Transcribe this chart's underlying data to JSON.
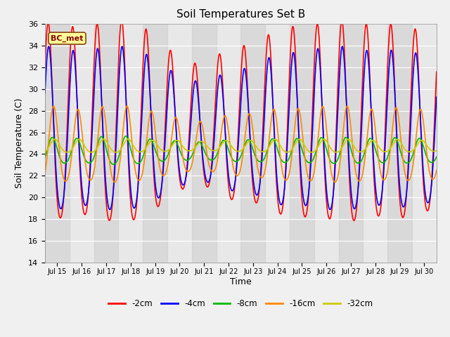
{
  "title": "Soil Temperatures Set B",
  "xlabel": "Time",
  "ylabel": "Soil Temperature (C)",
  "ylim": [
    14,
    36
  ],
  "xlim_days": [
    14.5,
    30.5
  ],
  "annotation": "BC_met",
  "legend_labels": [
    "-2cm",
    "-4cm",
    "-8cm",
    "-16cm",
    "-32cm"
  ],
  "legend_colors": [
    "#ff0000",
    "#0000ff",
    "#00bb00",
    "#ff8800",
    "#cccc00"
  ],
  "xtick_labels": [
    "Jul 15",
    "Jul 16",
    "Jul 17",
    "Jul 18",
    "Jul 19",
    "Jul 20",
    "Jul 21",
    "Jul 22",
    "Jul 23",
    "Jul 24",
    "Jul 25",
    "Jul 26",
    "Jul 27",
    "Jul 28",
    "Jul 29",
    "Jul 30"
  ],
  "xtick_positions": [
    15,
    16,
    17,
    18,
    19,
    20,
    21,
    22,
    23,
    24,
    25,
    26,
    27,
    28,
    29,
    30
  ],
  "background_color": "#f0f0f0",
  "plot_bg_color": "#e8e8e8",
  "grid_color": "#ffffff",
  "ytick_positions": [
    14,
    16,
    18,
    20,
    22,
    24,
    26,
    28,
    30,
    32,
    34,
    36
  ]
}
